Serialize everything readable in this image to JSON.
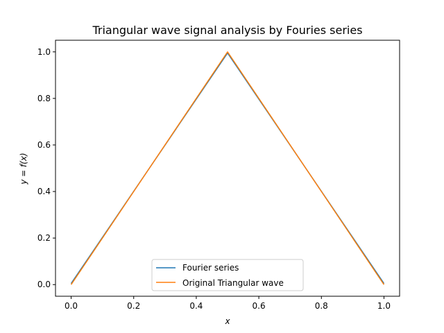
{
  "chart_data": {
    "type": "line",
    "title": "Triangular wave signal analysis by Fouries series",
    "xlabel": "x",
    "ylabel": "y = f(x)",
    "xlim": [
      -0.05,
      1.05
    ],
    "ylim": [
      -0.05,
      1.05
    ],
    "xticks": [
      0.0,
      0.2,
      0.4,
      0.6,
      0.8,
      1.0
    ],
    "xtick_labels": [
      "0.0",
      "0.2",
      "0.4",
      "0.6",
      "0.8",
      "1.0"
    ],
    "yticks": [
      0.0,
      0.2,
      0.4,
      0.6,
      0.8,
      1.0
    ],
    "ytick_labels": [
      "0.0",
      "0.2",
      "0.4",
      "0.6",
      "0.8",
      "1.0"
    ],
    "grid": false,
    "legend_position": "lower center",
    "series": [
      {
        "name": "Fourier series",
        "color": "#1f77b4",
        "x": [
          0.0,
          0.5,
          1.0
        ],
        "y": [
          0.005,
          0.995,
          0.005
        ]
      },
      {
        "name": "Original Triangular wave",
        "color": "#ff7f0e",
        "x": [
          0.0,
          0.5,
          1.0
        ],
        "y": [
          0.0,
          1.0,
          0.0
        ]
      }
    ]
  }
}
